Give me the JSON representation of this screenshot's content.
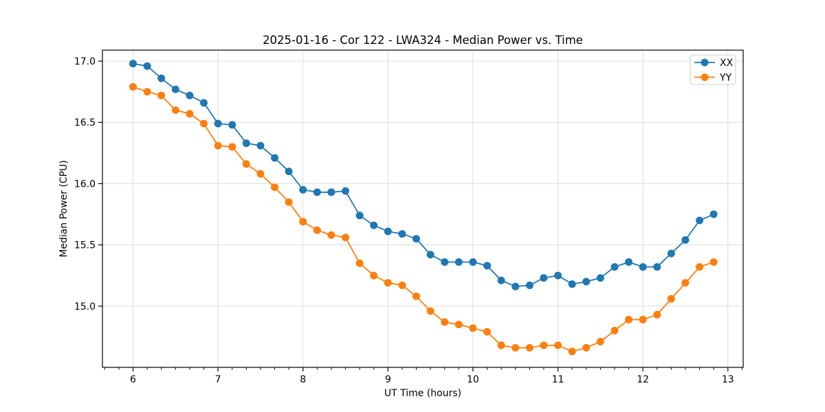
{
  "figure": {
    "background": "#ffffff"
  },
  "chart_data": {
    "type": "line",
    "title": "2025-01-16 - Cor 122 - LWA324 - Median Power vs. Time",
    "xlabel": "UT Time (hours)",
    "ylabel": "Median Power (CPU)",
    "xlim": [
      5.64,
      13.18
    ],
    "ylim": [
      14.5,
      17.09
    ],
    "x_ticks": [
      6,
      7,
      8,
      9,
      10,
      11,
      12,
      13
    ],
    "y_ticks": [
      15.0,
      15.5,
      16.0,
      16.5,
      17.0
    ],
    "x_minor_divisions_per_hour": 6,
    "grid": true,
    "legend_position": "upper right",
    "x": [
      6.0,
      6.167,
      6.333,
      6.5,
      6.667,
      6.833,
      7.0,
      7.167,
      7.333,
      7.5,
      7.667,
      7.833,
      8.0,
      8.167,
      8.333,
      8.5,
      8.667,
      8.833,
      9.0,
      9.167,
      9.333,
      9.5,
      9.667,
      9.833,
      10.0,
      10.167,
      10.333,
      10.5,
      10.667,
      10.833,
      11.0,
      11.167,
      11.333,
      11.5,
      11.667,
      11.833,
      12.0,
      12.167,
      12.333,
      12.5,
      12.667,
      12.833
    ],
    "series": [
      {
        "name": "XX",
        "color": "#1f77b4",
        "values": [
          16.98,
          16.96,
          16.86,
          16.77,
          16.72,
          16.66,
          16.49,
          16.48,
          16.33,
          16.31,
          16.21,
          16.1,
          15.95,
          15.93,
          15.93,
          15.94,
          15.74,
          15.66,
          15.61,
          15.59,
          15.55,
          15.42,
          15.36,
          15.36,
          15.36,
          15.33,
          15.21,
          15.16,
          15.17,
          15.23,
          15.25,
          15.18,
          15.2,
          15.23,
          15.32,
          15.36,
          15.32,
          15.32,
          15.43,
          15.54,
          15.7,
          15.75
        ]
      },
      {
        "name": "YY",
        "color": "#ff7f0e",
        "values": [
          16.79,
          16.75,
          16.72,
          16.6,
          16.57,
          16.49,
          16.31,
          16.3,
          16.16,
          16.08,
          15.97,
          15.85,
          15.69,
          15.62,
          15.58,
          15.56,
          15.35,
          15.25,
          15.19,
          15.17,
          15.08,
          14.96,
          14.87,
          14.85,
          14.82,
          14.79,
          14.68,
          14.66,
          14.66,
          14.68,
          14.68,
          14.63,
          14.66,
          14.71,
          14.8,
          14.89,
          14.89,
          14.93,
          15.06,
          15.19,
          15.32,
          15.36
        ]
      }
    ],
    "style": {
      "grid_color": "#dcdcdc",
      "spine_color": "#000000",
      "tick_color": "#000000",
      "legend_border_color": "#cccccc",
      "legend_background": "#ffffff"
    }
  }
}
